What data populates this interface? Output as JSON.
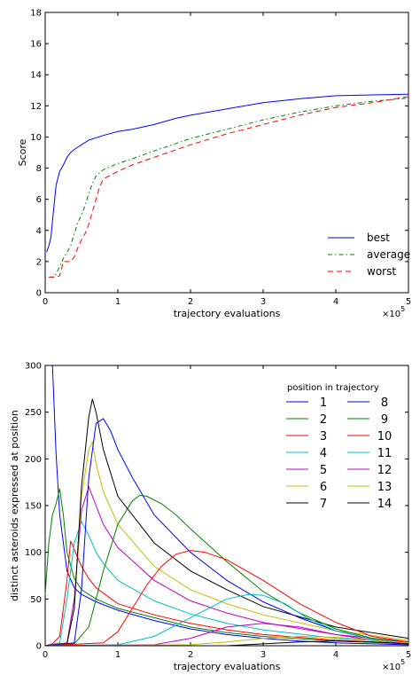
{
  "chart_data": [
    {
      "type": "line",
      "xlabel": "trajectory evaluations",
      "ylabel": "Score",
      "x_multiplier_label": "×10",
      "x_multiplier_exp": "5",
      "xlim": [
        0,
        5
      ],
      "ylim": [
        0,
        18
      ],
      "xticks": [
        "0",
        "1",
        "2",
        "3",
        "4",
        "5"
      ],
      "yticks": [
        "0",
        "2",
        "4",
        "6",
        "8",
        "10",
        "12",
        "14",
        "16",
        "18"
      ],
      "grid": false,
      "legend_position": "bottom-right",
      "series": [
        {
          "name": "best",
          "color": "#0000ff",
          "dash": "solid",
          "x": [
            0.02,
            0.05,
            0.08,
            0.1,
            0.12,
            0.15,
            0.2,
            0.25,
            0.3,
            0.35,
            0.4,
            0.5,
            0.6,
            0.7,
            0.8,
            1.0,
            1.2,
            1.5,
            1.8,
            2.0,
            2.5,
            3.0,
            3.5,
            4.0,
            4.5,
            5.0
          ],
          "y": [
            2.6,
            3.0,
            3.6,
            4.6,
            5.5,
            6.9,
            7.8,
            8.2,
            8.7,
            9.0,
            9.2,
            9.5,
            9.8,
            9.95,
            10.1,
            10.35,
            10.5,
            10.8,
            11.2,
            11.4,
            11.8,
            12.2,
            12.45,
            12.65,
            12.7,
            12.75
          ]
        },
        {
          "name": "average",
          "color": "#008000",
          "dash": "dashdot",
          "x": [
            0.05,
            0.1,
            0.15,
            0.2,
            0.25,
            0.3,
            0.35,
            0.4,
            0.45,
            0.5,
            0.55,
            0.6,
            0.65,
            0.7,
            0.8,
            1.0,
            1.2,
            1.5,
            2.0,
            2.5,
            3.0,
            3.5,
            4.0,
            4.5,
            5.0
          ],
          "y": [
            1.0,
            1.0,
            1.2,
            1.7,
            2.2,
            2.6,
            3.0,
            3.8,
            4.5,
            5.0,
            5.6,
            6.4,
            7.0,
            7.5,
            7.9,
            8.3,
            8.6,
            9.1,
            9.9,
            10.5,
            11.1,
            11.6,
            12.0,
            12.3,
            12.5
          ]
        },
        {
          "name": "worst",
          "color": "#ff0000",
          "dash": "dashed",
          "x": [
            0.05,
            0.1,
            0.15,
            0.2,
            0.25,
            0.3,
            0.35,
            0.4,
            0.45,
            0.5,
            0.55,
            0.6,
            0.65,
            0.7,
            0.75,
            0.8,
            1.0,
            1.2,
            1.5,
            2.0,
            2.5,
            3.0,
            3.5,
            4.0,
            4.5,
            5.0
          ],
          "y": [
            1.0,
            1.0,
            1.0,
            1.1,
            2.0,
            2.0,
            2.0,
            2.3,
            2.9,
            3.4,
            3.8,
            4.4,
            5.2,
            6.0,
            6.8,
            7.3,
            7.8,
            8.2,
            8.7,
            9.5,
            10.2,
            10.8,
            11.4,
            11.9,
            12.2,
            12.6
          ]
        }
      ]
    },
    {
      "type": "line",
      "xlabel": "trajectory evaluations",
      "ylabel": "distinct asteroids expressed at position",
      "x_multiplier_label": "×10",
      "x_multiplier_exp": "5",
      "xlim": [
        0,
        5
      ],
      "ylim": [
        0,
        300
      ],
      "xticks": [
        "0",
        "1",
        "2",
        "3",
        "4",
        "5"
      ],
      "yticks": [
        "0",
        "50",
        "100",
        "150",
        "200",
        "250",
        "300"
      ],
      "grid": false,
      "legend_title": "position in trajectory",
      "legend_position": "top-right",
      "series": [
        {
          "name": "1",
          "color": "#0000ff",
          "x": [
            0.1,
            0.15,
            0.2,
            0.3,
            0.4,
            0.5,
            0.7,
            1.0,
            1.5,
            2.0,
            2.5,
            3.0,
            3.5,
            4.0,
            4.5,
            5.0
          ],
          "y": [
            300,
            205,
            140,
            80,
            62,
            55,
            47,
            38,
            27,
            18,
            12,
            8,
            5,
            3,
            2,
            1
          ]
        },
        {
          "name": "2",
          "color": "#008000",
          "x": [
            0.0,
            0.05,
            0.1,
            0.15,
            0.2,
            0.25,
            0.3,
            0.4,
            0.5,
            0.7,
            1.0,
            1.5,
            2.0,
            2.5,
            3.0,
            4.0,
            5.0
          ],
          "y": [
            55,
            110,
            140,
            152,
            168,
            140,
            100,
            72,
            60,
            50,
            40,
            30,
            20,
            14,
            10,
            5,
            2
          ]
        },
        {
          "name": "3",
          "color": "#ff0000",
          "x": [
            0.0,
            0.1,
            0.2,
            0.3,
            0.35,
            0.4,
            0.5,
            0.6,
            0.7,
            1.0,
            1.5,
            2.0,
            2.5,
            3.0,
            4.0,
            5.0
          ],
          "y": [
            0,
            2,
            10,
            70,
            112,
            103,
            85,
            72,
            62,
            45,
            33,
            24,
            17,
            12,
            6,
            2
          ]
        },
        {
          "name": "4",
          "color": "#00bfbf",
          "x": [
            0.0,
            0.2,
            0.3,
            0.4,
            0.5,
            0.6,
            0.7,
            0.8,
            1.0,
            1.5,
            2.0,
            2.5,
            3.0,
            4.0,
            5.0
          ],
          "y": [
            0,
            3,
            50,
            110,
            133,
            118,
            100,
            88,
            70,
            48,
            34,
            24,
            17,
            8,
            3
          ]
        },
        {
          "name": "5",
          "color": "#bf00bf",
          "x": [
            0.0,
            0.3,
            0.4,
            0.5,
            0.6,
            0.7,
            0.8,
            1.0,
            1.5,
            2.0,
            2.5,
            3.0,
            4.0,
            5.0
          ],
          "y": [
            0,
            3,
            50,
            145,
            170,
            150,
            130,
            105,
            70,
            48,
            35,
            25,
            12,
            4
          ]
        },
        {
          "name": "6",
          "color": "#bfbf00",
          "x": [
            0.0,
            0.3,
            0.4,
            0.5,
            0.6,
            0.65,
            0.7,
            0.8,
            1.0,
            1.5,
            2.0,
            2.5,
            3.0,
            4.0,
            5.0
          ],
          "y": [
            0,
            2,
            40,
            160,
            210,
            218,
            195,
            165,
            130,
            85,
            60,
            45,
            33,
            16,
            6
          ]
        },
        {
          "name": "7",
          "color": "#000000",
          "x": [
            0.0,
            0.3,
            0.4,
            0.5,
            0.6,
            0.65,
            0.7,
            0.8,
            1.0,
            1.5,
            2.0,
            2.5,
            3.0,
            4.0,
            5.0
          ],
          "y": [
            0,
            2,
            40,
            170,
            245,
            264,
            250,
            210,
            160,
            110,
            80,
            60,
            42,
            20,
            8
          ]
        },
        {
          "name": "8",
          "color": "#0000ff",
          "x": [
            0.0,
            0.4,
            0.5,
            0.6,
            0.7,
            0.8,
            0.9,
            1.0,
            1.2,
            1.5,
            2.0,
            2.5,
            3.0,
            3.5,
            4.0,
            4.5,
            5.0
          ],
          "y": [
            0,
            3,
            60,
            180,
            238,
            243,
            230,
            210,
            180,
            140,
            100,
            70,
            47,
            30,
            16,
            7,
            3
          ]
        },
        {
          "name": "9",
          "color": "#008000",
          "x": [
            0.0,
            0.4,
            0.6,
            0.8,
            1.0,
            1.2,
            1.3,
            1.4,
            1.6,
            1.8,
            2.0,
            2.5,
            3.0,
            3.5,
            4.0,
            4.5,
            5.0
          ],
          "y": [
            0,
            2,
            20,
            80,
            130,
            155,
            161,
            160,
            152,
            140,
            125,
            90,
            58,
            35,
            18,
            8,
            3
          ]
        },
        {
          "name": "10",
          "color": "#ff0000",
          "x": [
            0.0,
            0.8,
            1.0,
            1.2,
            1.4,
            1.6,
            1.8,
            2.0,
            2.2,
            2.5,
            3.0,
            3.5,
            4.0,
            4.5,
            5.0
          ],
          "y": [
            0,
            3,
            15,
            40,
            65,
            85,
            98,
            102,
            100,
            92,
            70,
            45,
            25,
            10,
            4
          ]
        },
        {
          "name": "11",
          "color": "#00bfbf",
          "x": [
            0.0,
            1.0,
            1.5,
            2.0,
            2.5,
            2.8,
            3.0,
            3.3,
            3.6,
            4.0,
            4.5,
            5.0
          ],
          "y": [
            0,
            1,
            10,
            30,
            50,
            55,
            54,
            45,
            30,
            16,
            7,
            3
          ]
        },
        {
          "name": "12",
          "color": "#bf00bf",
          "x": [
            0.0,
            1.5,
            2.0,
            2.5,
            3.0,
            3.5,
            4.0,
            4.5,
            5.0
          ],
          "y": [
            0,
            1,
            8,
            20,
            24,
            20,
            12,
            6,
            2
          ]
        },
        {
          "name": "13",
          "color": "#bfbf00",
          "x": [
            0.0,
            2.0,
            2.5,
            3.0,
            3.5,
            4.0,
            4.5,
            5.0
          ],
          "y": [
            0,
            1,
            4,
            8,
            10,
            9,
            6,
            3
          ]
        },
        {
          "name": "14",
          "color": "#000000",
          "x": [
            0.0,
            2.5,
            3.0,
            3.5,
            4.0,
            4.5,
            5.0
          ],
          "y": [
            0,
            0,
            2,
            4,
            5,
            4,
            2
          ]
        }
      ]
    }
  ]
}
